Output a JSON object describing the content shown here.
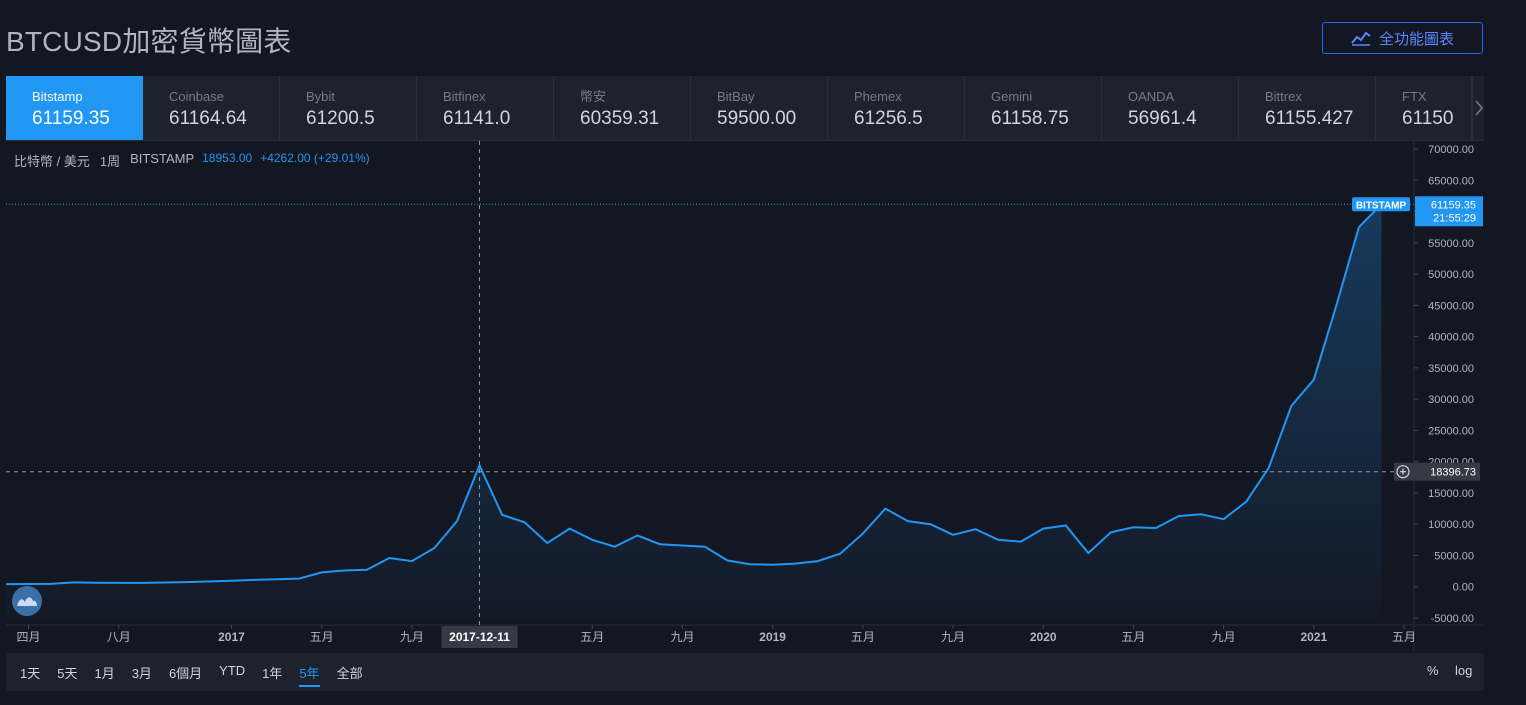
{
  "title": "BTCUSD加密貨幣圖表",
  "full_button": {
    "label": "全功能圖表",
    "icon": "chart-line-icon"
  },
  "exchanges": [
    {
      "name": "Bitstamp",
      "price": "61159.35",
      "active": true
    },
    {
      "name": "Coinbase",
      "price": "61164.64"
    },
    {
      "name": "Bybit",
      "price": "61200.5"
    },
    {
      "name": "Bitfinex",
      "price": "61141.0"
    },
    {
      "name": "幣安",
      "price": "60359.31"
    },
    {
      "name": "BitBay",
      "price": "59500.00"
    },
    {
      "name": "Phemex",
      "price": "61256.5"
    },
    {
      "name": "Gemini",
      "price": "61158.75"
    },
    {
      "name": "OANDA",
      "price": "56961.4"
    },
    {
      "name": "Bittrex",
      "price": "61155.427"
    },
    {
      "name": "FTX",
      "price": "61150"
    }
  ],
  "legend": {
    "symbol": "比特幣 / 美元",
    "interval": "1周",
    "exchange": "BITSTAMP",
    "price": "18953.00",
    "change": "+4262.00 (+29.01%)"
  },
  "ranges": [
    "1天",
    "5天",
    "1月",
    "3月",
    "6個月",
    "YTD",
    "1年",
    "5年",
    "全部"
  ],
  "active_range": "5年",
  "scale_buttons": {
    "percent": "%",
    "log": "log"
  },
  "chart_data": {
    "type": "area",
    "title": "",
    "ylim": [
      -5000,
      70000
    ],
    "y_ticks": [
      "70000.00",
      "65000.00",
      "60000.00",
      "55000.00",
      "50000.00",
      "45000.00",
      "40000.00",
      "35000.00",
      "30000.00",
      "25000.00",
      "20000.00",
      "15000.00",
      "10000.00",
      "5000.00",
      "0.00",
      "-5000.00"
    ],
    "x_ticks": [
      {
        "label": "四月",
        "t": "2016-04"
      },
      {
        "label": "八月",
        "t": "2016-08"
      },
      {
        "label": "2017",
        "t": "2017-01",
        "bold": true
      },
      {
        "label": "五月",
        "t": "2017-05"
      },
      {
        "label": "九月",
        "t": "2017-09"
      },
      {
        "label": "五月",
        "t": "2018-05"
      },
      {
        "label": "九月",
        "t": "2018-09"
      },
      {
        "label": "2019",
        "t": "2019-01",
        "bold": true
      },
      {
        "label": "五月",
        "t": "2019-05"
      },
      {
        "label": "九月",
        "t": "2019-09"
      },
      {
        "label": "2020",
        "t": "2020-01",
        "bold": true
      },
      {
        "label": "五月",
        "t": "2020-05"
      },
      {
        "label": "九月",
        "t": "2020-09"
      },
      {
        "label": "2021",
        "t": "2021-01",
        "bold": true
      },
      {
        "label": "五月",
        "t": "2021-05"
      }
    ],
    "x_start": "2016-03",
    "x_end": "2021-05",
    "series": [
      {
        "x": [
          "2016-03",
          "2016-05",
          "2016-06",
          "2016-07",
          "2016-09",
          "2016-11",
          "2017-01",
          "2017-02",
          "2017-03",
          "2017-04",
          "2017-05",
          "2017-06",
          "2017-07",
          "2017-08",
          "2017-09",
          "2017-10",
          "2017-11",
          "2017-12",
          "2018-01",
          "2018-02",
          "2018-03",
          "2018-04",
          "2018-05",
          "2018-06",
          "2018-07",
          "2018-08",
          "2018-09",
          "2018-10",
          "2018-11",
          "2018-12",
          "2019-01",
          "2019-02",
          "2019-03",
          "2019-04",
          "2019-05",
          "2019-06",
          "2019-07",
          "2019-08",
          "2019-09",
          "2019-10",
          "2019-11",
          "2019-12",
          "2020-01",
          "2020-02",
          "2020-03",
          "2020-04",
          "2020-05",
          "2020-06",
          "2020-07",
          "2020-08",
          "2020-09",
          "2020-10",
          "2020-11",
          "2020-12",
          "2021-01",
          "2021-02",
          "2021-03",
          "2021-04"
        ],
        "values": [
          420,
          450,
          700,
          650,
          610,
          740,
          950,
          1100,
          1200,
          1300,
          2300,
          2600,
          2700,
          4600,
          4100,
          6200,
          10500,
          19400,
          11500,
          10300,
          7000,
          9300,
          7500,
          6400,
          8200,
          6800,
          6600,
          6400,
          4200,
          3600,
          3500,
          3700,
          4100,
          5300,
          8500,
          12500,
          10500,
          10000,
          8300,
          9200,
          7500,
          7200,
          9300,
          9800,
          5400,
          8700,
          9500,
          9400,
          11300,
          11600,
          10800,
          13600,
          19000,
          28900,
          33100,
          45000,
          57500,
          61159
        ]
      }
    ],
    "current_label": {
      "tag": "BITSTAMP",
      "price": "61159.35",
      "countdown": "21:55:29",
      "value": 61159.35
    },
    "crosshair": {
      "date_label": "2017-12-11",
      "t": "2017-12",
      "price_label": "18396.73",
      "value": 18396.73
    }
  }
}
